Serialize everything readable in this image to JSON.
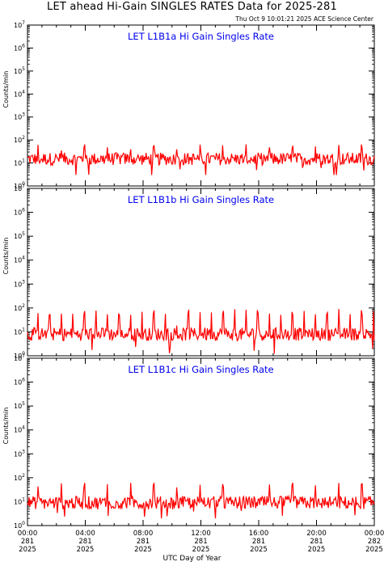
{
  "header": {
    "title": "LET ahead Hi-Gain SINGLES RATES Data for 2025-281",
    "timestamp": "Thu Oct  9 10:01:21 2025 ACE Science Center"
  },
  "x_axis": {
    "label": "UTC Day of Year",
    "ticks": [
      {
        "time": "00:00",
        "day": "281",
        "year": "2025"
      },
      {
        "time": "04:00",
        "day": "281",
        "year": "2025"
      },
      {
        "time": "08:00",
        "day": "281",
        "year": "2025"
      },
      {
        "time": "12:00",
        "day": "281",
        "year": "2025"
      },
      {
        "time": "16:00",
        "day": "281",
        "year": "2025"
      },
      {
        "time": "20:00",
        "day": "281",
        "year": "2025"
      },
      {
        "time": "00:00",
        "day": "282",
        "year": "2025"
      }
    ]
  },
  "colors": {
    "series": "#ff0000",
    "panel_title": "#0000ee",
    "axes": "#000000"
  },
  "chart_data": [
    {
      "type": "line",
      "title": "LET L1B1a Hi Gain Singles Rate",
      "ylabel": "Counts/min",
      "yscale": "log",
      "ylim": [
        1,
        10000000
      ],
      "xlim_hours": [
        0,
        24
      ],
      "series": [
        {
          "baseline": 15,
          "spike_level": 50,
          "spike_period_hours": 1.6,
          "min_dips": 3
        }
      ]
    },
    {
      "type": "line",
      "title": "LET L1B1b Hi Gain Singles Rate",
      "ylabel": "Counts/min",
      "yscale": "log",
      "ylim": [
        1,
        10000000
      ],
      "xlim_hours": [
        0,
        24
      ],
      "series": [
        {
          "baseline": 8,
          "spike_level": 70,
          "spike_period_hours": 0.8,
          "min_dips": 1
        }
      ]
    },
    {
      "type": "line",
      "title": "LET L1B1c Hi Gain Singles Rate",
      "ylabel": "Counts/min",
      "yscale": "log",
      "ylim": [
        1,
        10000000
      ],
      "xlim_hours": [
        0,
        24
      ],
      "series": [
        {
          "baseline": 9,
          "spike_level": 50,
          "spike_period_hours": 1.6,
          "min_dips": 2
        }
      ]
    }
  ]
}
